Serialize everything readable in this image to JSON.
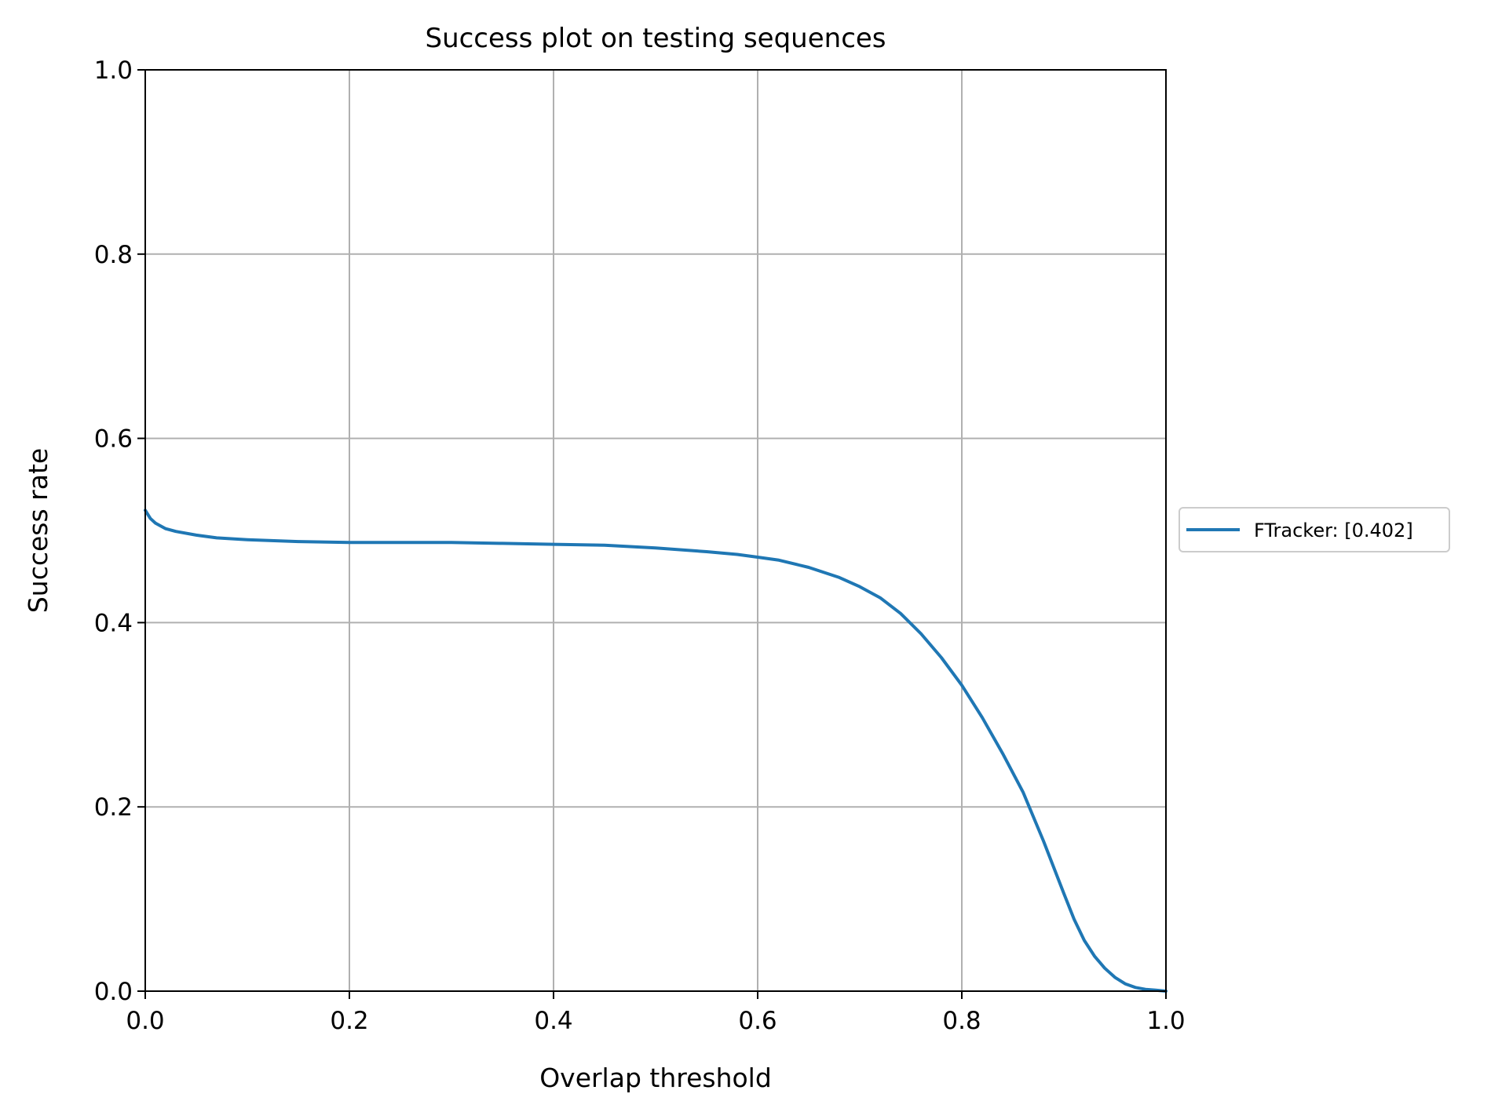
{
  "chart_data": {
    "type": "line",
    "title": "Success plot on testing sequences",
    "xlabel": "Overlap threshold",
    "ylabel": "Success rate",
    "xlim": [
      0,
      1
    ],
    "ylim": [
      0,
      1
    ],
    "xticks": [
      "0.0",
      "0.2",
      "0.4",
      "0.6",
      "0.8",
      "1.0"
    ],
    "yticks": [
      "0.0",
      "0.2",
      "0.4",
      "0.6",
      "0.8",
      "1.0"
    ],
    "grid": true,
    "legend_position": "right",
    "series": [
      {
        "name": "FTracker: [0.402]",
        "color": "#1f77b4",
        "x": [
          0.0,
          0.005,
          0.01,
          0.02,
          0.03,
          0.05,
          0.07,
          0.1,
          0.15,
          0.2,
          0.25,
          0.3,
          0.35,
          0.4,
          0.45,
          0.5,
          0.55,
          0.58,
          0.6,
          0.62,
          0.65,
          0.68,
          0.7,
          0.72,
          0.74,
          0.76,
          0.78,
          0.8,
          0.82,
          0.84,
          0.86,
          0.88,
          0.9,
          0.91,
          0.92,
          0.93,
          0.94,
          0.95,
          0.96,
          0.97,
          0.98,
          0.99,
          1.0
        ],
        "y": [
          0.522,
          0.513,
          0.508,
          0.502,
          0.499,
          0.495,
          0.492,
          0.49,
          0.488,
          0.487,
          0.487,
          0.487,
          0.486,
          0.485,
          0.484,
          0.481,
          0.477,
          0.474,
          0.471,
          0.468,
          0.46,
          0.449,
          0.439,
          0.427,
          0.41,
          0.388,
          0.362,
          0.332,
          0.297,
          0.258,
          0.216,
          0.163,
          0.106,
          0.078,
          0.055,
          0.038,
          0.025,
          0.015,
          0.008,
          0.004,
          0.002,
          0.001,
          0.0
        ]
      }
    ]
  }
}
